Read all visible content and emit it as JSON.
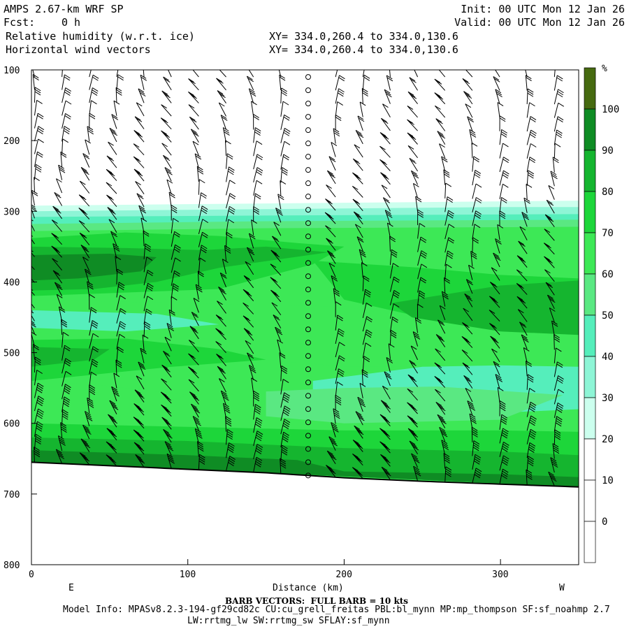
{
  "header": {
    "model": "AMPS 2.67-km WRF SP",
    "fcst_label": "Fcst:",
    "fcst_value": "0 h",
    "field1": "Relative humidity (w.r.t. ice)",
    "field2": "Horizontal wind vectors",
    "init": "Init: 00 UTC Mon 12 Jan 26",
    "valid": "Valid: 00 UTC Mon 12 Jan 26",
    "xy1": "XY= 334.0,260.4 to 334.0,130.6",
    "xy2": "XY= 334.0,260.4 to 334.0,130.6"
  },
  "footer": {
    "barb_note": "BARB VECTORS:  FULL BARB = 10 kts",
    "model_info": "Model Info: MPASv8.2.3-194-gf29cd82c CU:cu_grell_freitas PBL:bl_mynn MP:mp_thompson SF:sf_noahmp 2.7",
    "model_info2": "LW:rrtmg_lw SW:rrtmg_sw SFLAY:sf_mynn"
  },
  "colors": {
    "c30": "#ccffee",
    "c40": "#8ef5d6",
    "c50": "#55eebb",
    "c60": "#5ae882",
    "c70": "#3de856",
    "c80": "#1dd63a",
    "c90": "#15b52f",
    "c100": "#0f8c24",
    "ctop": "#466a10"
  },
  "chart_data": {
    "type": "heatmap",
    "title": "Relative humidity (w.r.t. ice)",
    "xlabel": "Distance (km)",
    "ylabel": "",
    "xlim": [
      0,
      350
    ],
    "ylim": [
      800,
      100
    ],
    "x_ticks": [
      0,
      100,
      200,
      300
    ],
    "y_ticks": [
      100,
      200,
      300,
      400,
      500,
      600,
      700,
      800
    ],
    "x_end_labels": [
      "E",
      "W"
    ],
    "colorbar": {
      "unit": "%",
      "labels": [
        100,
        90,
        80,
        70,
        60,
        50,
        40,
        30,
        20,
        10,
        0
      ]
    },
    "terrain_pressure": [
      [
        0,
        655
      ],
      [
        50,
        660
      ],
      [
        100,
        665
      ],
      [
        150,
        670
      ],
      [
        200,
        677
      ],
      [
        250,
        682
      ],
      [
        300,
        686
      ],
      [
        350,
        690
      ]
    ]
  }
}
